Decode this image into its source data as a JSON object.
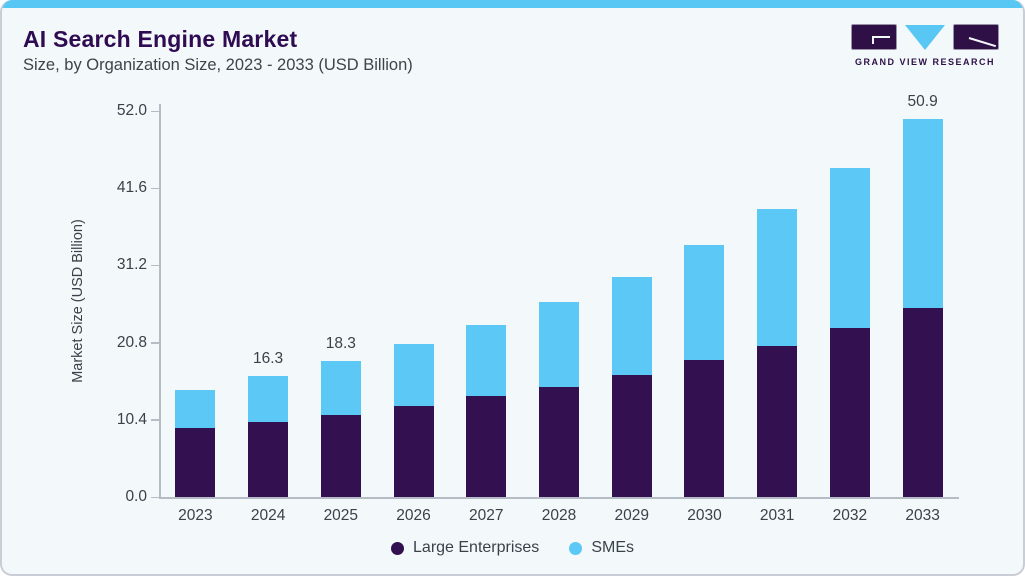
{
  "header": {
    "title": "AI Search Engine Market",
    "subtitle": "Size, by Organization Size, 2023 - 2033 (USD Billion)"
  },
  "logo": {
    "name": "GRAND VIEW RESEARCH"
  },
  "colors": {
    "accent_blue": "#58C7F3",
    "series_purple": "#331150",
    "series_blue": "#5BC8F5",
    "title_purple": "#2E0B52",
    "card_bg": "#F3F8FB",
    "card_border": "#C9CDD5",
    "axis_line": "#B6BCC6",
    "text": "#3B4149"
  },
  "chart_data": {
    "type": "bar",
    "stacked": true,
    "title": "AI Search Engine Market Size, by Organization Size, 2023 - 2033 (USD Billion)",
    "categories": [
      "2023",
      "2024",
      "2025",
      "2026",
      "2027",
      "2028",
      "2029",
      "2030",
      "2031",
      "2032",
      "2033"
    ],
    "series": [
      {
        "name": "Large Enterprises",
        "color": "#331150",
        "values": [
          9.3,
          10.1,
          11.1,
          12.2,
          13.6,
          14.8,
          16.4,
          18.4,
          20.4,
          22.8,
          25.5
        ]
      },
      {
        "name": "SMEs",
        "color": "#5BC8F5",
        "values": [
          5.1,
          6.2,
          7.2,
          8.4,
          9.6,
          11.5,
          13.3,
          15.5,
          18.4,
          21.5,
          25.4
        ]
      }
    ],
    "totals": [
      14.4,
      16.3,
      18.3,
      20.6,
      23.2,
      26.3,
      29.7,
      33.9,
      38.8,
      44.3,
      50.9
    ],
    "bar_labels": [
      "",
      "16.3",
      "18.3",
      "",
      "",
      "",
      "",
      "",
      "",
      "",
      "50.9"
    ],
    "xlabel": "",
    "ylabel": "Market Size (USD Billion)",
    "ylim": [
      0,
      52
    ],
    "yticks": [
      "0.0",
      "10.4",
      "20.8",
      "31.2",
      "41.6",
      "52.0"
    ],
    "legend_position": "bottom",
    "grid": false
  }
}
